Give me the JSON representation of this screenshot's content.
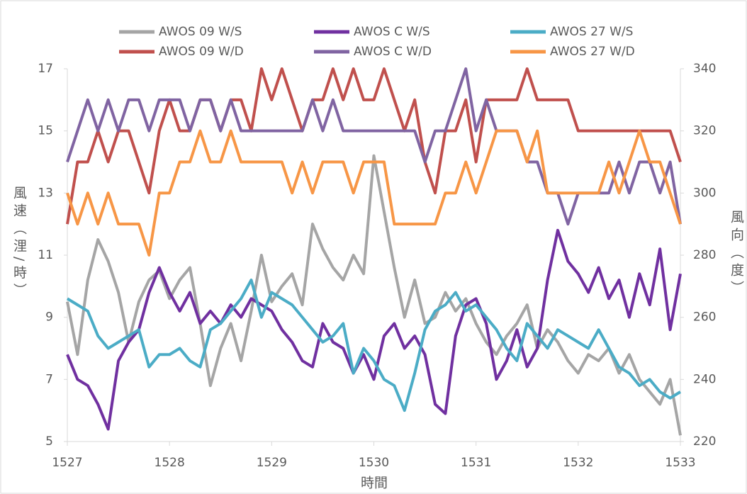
{
  "chart_data": {
    "type": "line",
    "x_label": "時間",
    "y_label": "風速（浬/時）",
    "y2_label": "風向（度）",
    "xlim": [
      1527,
      1533
    ],
    "xticks": [
      1527,
      1528,
      1529,
      1530,
      1531,
      1532,
      1533
    ],
    "ylim": [
      5,
      17
    ],
    "yticks": [
      5,
      7,
      9,
      11,
      13,
      15,
      17
    ],
    "y2lim": [
      220,
      340
    ],
    "y2ticks": [
      220,
      240,
      260,
      280,
      300,
      320,
      340
    ],
    "grid": false,
    "x": [
      1527,
      1527.1,
      1527.2,
      1527.3,
      1527.4,
      1527.5,
      1527.6,
      1527.7,
      1527.8,
      1527.9,
      1528,
      1528.1,
      1528.2,
      1528.3,
      1528.4,
      1528.5,
      1528.6,
      1528.7,
      1528.8,
      1528.9,
      1529,
      1529.1,
      1529.2,
      1529.3,
      1529.4,
      1529.5,
      1529.6,
      1529.7,
      1529.8,
      1529.9,
      1530,
      1530.1,
      1530.2,
      1530.3,
      1530.4,
      1530.5,
      1530.6,
      1530.7,
      1530.8,
      1530.9,
      1531,
      1531.1,
      1531.2,
      1531.3,
      1531.4,
      1531.5,
      1531.6,
      1531.7,
      1531.8,
      1531.9,
      1532,
      1532.1,
      1532.2,
      1532.3,
      1532.4,
      1532.5,
      1532.6,
      1532.7,
      1532.8,
      1532.9,
      1533
    ],
    "series": [
      {
        "name": "AWOS 09 W/S",
        "color": "#a5a5a5",
        "values": [
          9.5,
          7.8,
          10.2,
          11.5,
          10.8,
          9.8,
          8.2,
          9.5,
          10.2,
          10.5,
          9.6,
          10.2,
          10.6,
          8.8,
          6.8,
          8.0,
          8.8,
          7.6,
          9.2,
          11.0,
          9.5,
          10.0,
          10.4,
          9.4,
          12.0,
          11.2,
          10.6,
          10.2,
          11.0,
          10.4,
          14.2,
          12.4,
          10.6,
          9.0,
          10.2,
          8.8,
          9.0,
          9.8,
          9.2,
          9.6,
          8.8,
          8.2,
          7.8,
          8.4,
          8.8,
          9.4,
          8.0,
          8.6,
          8.2,
          7.6,
          7.2,
          7.8,
          7.6,
          8.0,
          7.2,
          7.8,
          7.0,
          6.6,
          6.2,
          7.0,
          5.2
        ]
      },
      {
        "name": "AWOS C W/S",
        "color": "#7030a0",
        "values": [
          7.8,
          7.0,
          6.8,
          6.2,
          5.4,
          7.6,
          8.2,
          8.6,
          9.8,
          10.6,
          9.8,
          9.2,
          9.8,
          8.8,
          9.2,
          8.8,
          9.4,
          9.0,
          9.6,
          9.4,
          9.2,
          8.6,
          8.2,
          7.6,
          7.4,
          8.8,
          8.2,
          8.0,
          7.2,
          7.8,
          7.0,
          8.4,
          8.8,
          8.0,
          8.4,
          7.8,
          6.2,
          5.9,
          8.4,
          9.4,
          9.6,
          8.8,
          7.0,
          7.6,
          8.6,
          7.4,
          8.0,
          10.2,
          11.8,
          10.8,
          10.4,
          9.8,
          10.6,
          9.6,
          10.2,
          9.0,
          10.4,
          9.4,
          11.2,
          8.6,
          10.4
        ]
      },
      {
        "name": "AWOS 27 W/S",
        "color": "#4bacc6",
        "values": [
          9.6,
          9.4,
          9.2,
          8.4,
          8.0,
          8.2,
          8.4,
          8.6,
          7.4,
          7.8,
          7.8,
          8.0,
          7.6,
          7.4,
          8.6,
          8.8,
          9.2,
          9.6,
          10.2,
          9.0,
          9.8,
          9.6,
          9.4,
          9.0,
          8.6,
          8.2,
          8.4,
          8.8,
          7.2,
          8.0,
          7.6,
          7.0,
          6.8,
          6.0,
          7.2,
          8.6,
          9.2,
          9.4,
          9.8,
          9.2,
          9.4,
          9.0,
          8.6,
          8.0,
          7.6,
          8.8,
          8.4,
          8.0,
          8.6,
          8.4,
          8.2,
          8.0,
          8.6,
          8.0,
          7.4,
          7.2,
          6.8,
          7.0,
          6.6,
          6.4,
          6.6
        ]
      },
      {
        "name": "AWOS 09 W/D",
        "color": "#c0504d",
        "axis": "y2",
        "values": [
          290,
          310,
          310,
          320,
          310,
          320,
          320,
          310,
          300,
          320,
          330,
          320,
          320,
          330,
          330,
          320,
          330,
          330,
          320,
          340,
          330,
          340,
          330,
          320,
          330,
          330,
          340,
          330,
          340,
          330,
          330,
          340,
          330,
          320,
          330,
          310,
          300,
          320,
          320,
          330,
          310,
          330,
          330,
          330,
          330,
          340,
          330,
          330,
          330,
          330,
          320,
          320,
          320,
          320,
          320,
          320,
          320,
          320,
          320,
          320,
          310
        ]
      },
      {
        "name": "AWOS C W/D",
        "color": "#8064a2",
        "axis": "y2",
        "values": [
          310,
          320,
          330,
          320,
          330,
          320,
          330,
          330,
          320,
          330,
          330,
          330,
          320,
          330,
          330,
          320,
          330,
          320,
          320,
          320,
          320,
          320,
          320,
          320,
          330,
          320,
          330,
          320,
          320,
          320,
          320,
          320,
          320,
          320,
          320,
          310,
          320,
          320,
          330,
          340,
          320,
          330,
          320,
          320,
          320,
          310,
          310,
          300,
          300,
          290,
          300,
          300,
          300,
          300,
          310,
          300,
          310,
          310,
          300,
          310,
          290
        ]
      },
      {
        "name": "AWOS 27 W/D",
        "color": "#f79646",
        "axis": "y2",
        "values": [
          300,
          290,
          300,
          290,
          300,
          290,
          290,
          290,
          280,
          300,
          300,
          310,
          310,
          320,
          310,
          310,
          320,
          310,
          310,
          310,
          310,
          310,
          300,
          310,
          300,
          310,
          310,
          310,
          300,
          310,
          310,
          310,
          290,
          290,
          290,
          290,
          290,
          300,
          300,
          310,
          300,
          310,
          320,
          320,
          320,
          310,
          320,
          300,
          300,
          300,
          300,
          300,
          300,
          310,
          300,
          310,
          320,
          310,
          310,
          300,
          290
        ]
      }
    ]
  }
}
